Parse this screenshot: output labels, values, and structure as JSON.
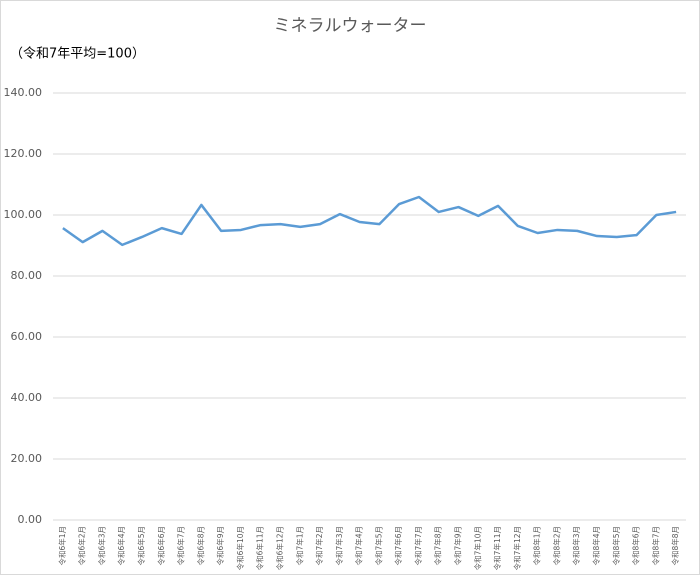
{
  "chart_data": {
    "type": "line",
    "title": "ミネラルウォーター",
    "subtitle": "（令和7年平均=100）",
    "categories": [
      "令和6年1月",
      "令和6年2月",
      "令和6年3月",
      "令和6年4月",
      "令和6年5月",
      "令和6年6月",
      "令和6年7月",
      "令和6年8月",
      "令和6年9月",
      "令和6年10月",
      "令和6年11月",
      "令和6年12月",
      "令和7年1月",
      "令和7年2月",
      "令和7年3月",
      "令和7年4月",
      "令和7年5月",
      "令和7年6月",
      "令和7年7月",
      "令和7年8月",
      "令和7年9月",
      "令和7年10月",
      "令和7年11月",
      "令和7年12月",
      "令和8年1月",
      "令和8年2月",
      "令和8年3月",
      "令和8年4月",
      "令和8年5月",
      "令和8年6月",
      "令和8年7月",
      "令和8年8月"
    ],
    "series": [
      {
        "color": "#5b9bd5",
        "values": [
          95.7,
          91.1,
          94.8,
          90.2,
          92.8,
          95.7,
          93.8,
          103.3,
          94.8,
          95.1,
          96.7,
          97.0,
          96.1,
          97.0,
          100.3,
          97.7,
          97.0,
          103.6,
          105.9,
          101.0,
          102.6,
          99.7,
          103.0,
          96.4,
          94.1,
          95.1,
          94.8,
          93.1,
          92.8,
          93.4,
          100.0,
          101.0
        ]
      }
    ],
    "ylim": [
      0,
      140
    ],
    "yticks": [
      {
        "value": 0,
        "label": "0.00"
      },
      {
        "value": 20,
        "label": "20.00"
      },
      {
        "value": 40,
        "label": "40.00"
      },
      {
        "value": 60,
        "label": "60.00"
      },
      {
        "value": 80,
        "label": "80.00"
      },
      {
        "value": 100,
        "label": "100.00"
      },
      {
        "value": 120,
        "label": "120.00"
      },
      {
        "value": 140,
        "label": "140.00"
      }
    ],
    "grid": true
  }
}
